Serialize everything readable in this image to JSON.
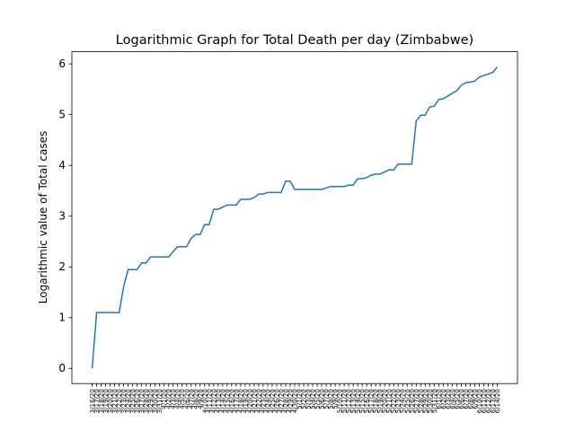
{
  "chart_data": {
    "type": "line",
    "title": "Logarithmic Graph for Total Death per day (Zimbabwe)",
    "y_label": "Logarithmic value of Total cases",
    "categories": [
      "3/16/20",
      "3/17/20",
      "3/18/20",
      "3/19/20",
      "3/20/20",
      "3/21/20",
      "3/22/20",
      "3/23/20",
      "3/24/20",
      "3/25/20",
      "3/26/20",
      "3/27/20",
      "3/28/20",
      "3/29/20",
      "3/30/20",
      "3/31/20",
      "4/1/20",
      "4/2/20",
      "4/3/20",
      "4/4/20",
      "4/5/20",
      "4/6/20",
      "4/7/20",
      "4/8/20",
      "4/9/20",
      "4/10/20",
      "4/11/20",
      "4/12/20",
      "4/13/20",
      "4/14/20",
      "4/15/20",
      "4/16/20",
      "4/17/20",
      "4/18/20",
      "4/19/20",
      "4/20/20",
      "4/21/20",
      "4/22/20",
      "4/23/20",
      "4/24/20",
      "4/25/20",
      "4/26/20",
      "4/27/20",
      "4/28/20",
      "4/29/20",
      "4/30/20",
      "5/1/20",
      "5/2/20",
      "5/3/20",
      "5/4/20",
      "5/5/20",
      "5/6/20",
      "5/7/20",
      "5/8/20",
      "5/9/20",
      "5/10/20",
      "5/11/20",
      "5/12/20",
      "5/13/20",
      "5/14/20",
      "5/15/20",
      "5/16/20",
      "5/17/20",
      "5/18/20",
      "5/19/20",
      "5/20/20",
      "5/21/20",
      "5/22/20",
      "5/23/20",
      "5/24/20",
      "5/25/20",
      "5/26/20",
      "5/27/20",
      "5/28/20",
      "5/29/20",
      "5/30/20",
      "5/31/20",
      "6/1/20",
      "6/2/20",
      "6/3/20",
      "6/4/20",
      "6/5/20",
      "6/6/20",
      "6/7/20",
      "6/8/20",
      "6/9/20",
      "6/10/20",
      "6/11/20",
      "6/12/20",
      "6/13/20",
      "6/14/20"
    ],
    "values": [
      0,
      1.099,
      1.099,
      1.099,
      1.099,
      1.099,
      1.099,
      1.609,
      1.946,
      1.946,
      1.946,
      2.079,
      2.079,
      2.197,
      2.197,
      2.197,
      2.197,
      2.197,
      2.303,
      2.398,
      2.398,
      2.398,
      2.565,
      2.639,
      2.639,
      2.833,
      2.833,
      3.135,
      3.135,
      3.178,
      3.219,
      3.219,
      3.219,
      3.332,
      3.332,
      3.332,
      3.367,
      3.434,
      3.434,
      3.466,
      3.466,
      3.466,
      3.466,
      3.689,
      3.689,
      3.526,
      3.526,
      3.526,
      3.526,
      3.526,
      3.526,
      3.526,
      3.555,
      3.584,
      3.584,
      3.584,
      3.584,
      3.611,
      3.611,
      3.738,
      3.738,
      3.761,
      3.807,
      3.829,
      3.829,
      3.871,
      3.912,
      3.912,
      4.025,
      4.025,
      4.025,
      4.025,
      4.875,
      4.99,
      4.99,
      5.153,
      5.165,
      5.298,
      5.313,
      5.366,
      5.42,
      5.47,
      5.58,
      5.63,
      5.64,
      5.66,
      5.74,
      5.77,
      5.8,
      5.83,
      5.94
    ],
    "color": "#1f77b4",
    "ylim": [
      -0.3,
      6.24
    ],
    "yticks": [
      0,
      1,
      2,
      3,
      4,
      5,
      6
    ]
  }
}
